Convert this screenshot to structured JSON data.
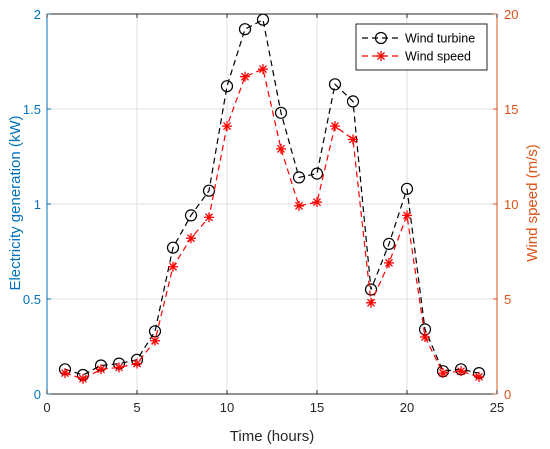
{
  "chart_data": {
    "type": "line",
    "title": "",
    "xlabel": "Time (hours)",
    "ylabel_left": "Electricity generation (kW)",
    "ylabel_right": "Wind speed (m/s)",
    "xlim": [
      0,
      25
    ],
    "ylim_left": [
      0,
      2
    ],
    "ylim_right": [
      0,
      20
    ],
    "x_ticks": [
      "0",
      "5",
      "10",
      "15",
      "20",
      "25"
    ],
    "y_left_ticks": [
      "0",
      "0.5",
      "1",
      "1.5",
      "2"
    ],
    "y_right_ticks": [
      "0",
      "5",
      "10",
      "15",
      "20"
    ],
    "grid": true,
    "legend_position": "top-right",
    "x": [
      1,
      2,
      3,
      4,
      5,
      6,
      7,
      8,
      9,
      10,
      11,
      12,
      13,
      14,
      15,
      16,
      17,
      18,
      19,
      20,
      21,
      22,
      23,
      24
    ],
    "series": [
      {
        "name": "Wind turbine",
        "axis": "left",
        "color": "#000000",
        "marker": "circle",
        "values": [
          0.13,
          0.1,
          0.15,
          0.16,
          0.18,
          0.33,
          0.77,
          0.94,
          1.07,
          1.62,
          1.92,
          1.97,
          1.48,
          1.14,
          1.16,
          1.63,
          1.54,
          0.55,
          0.79,
          1.08,
          0.34,
          0.12,
          0.13,
          0.11
        ]
      },
      {
        "name": "Wind speed",
        "axis": "right",
        "color": "#ff0000",
        "marker": "asterisk",
        "values": [
          1.1,
          0.8,
          1.3,
          1.4,
          1.6,
          2.8,
          6.7,
          8.2,
          9.3,
          14.1,
          16.7,
          17.1,
          12.9,
          9.9,
          10.1,
          14.1,
          13.4,
          4.8,
          6.9,
          9.4,
          3.0,
          1.1,
          1.2,
          0.9
        ]
      }
    ],
    "colors": {
      "left_axis": "#0072BD",
      "right_axis": "#D95319",
      "grid": "#dfdfdf",
      "box": "#262626"
    }
  }
}
